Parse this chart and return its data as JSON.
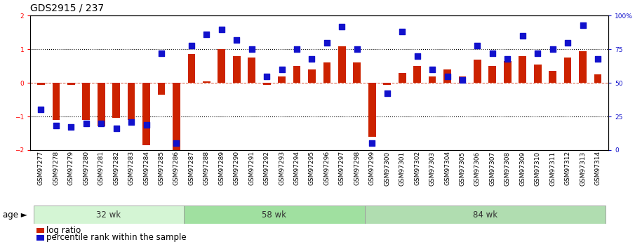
{
  "title": "GDS2915 / 237",
  "samples": [
    "GSM97277",
    "GSM97278",
    "GSM97279",
    "GSM97280",
    "GSM97281",
    "GSM97282",
    "GSM97283",
    "GSM97284",
    "GSM97285",
    "GSM97286",
    "GSM97287",
    "GSM97288",
    "GSM97289",
    "GSM97290",
    "GSM97291",
    "GSM97292",
    "GSM97293",
    "GSM97294",
    "GSM97295",
    "GSM97296",
    "GSM97297",
    "GSM97298",
    "GSM97299",
    "GSM97300",
    "GSM97301",
    "GSM97302",
    "GSM97303",
    "GSM97304",
    "GSM97305",
    "GSM97306",
    "GSM97307",
    "GSM97308",
    "GSM97309",
    "GSM97310",
    "GSM97311",
    "GSM97312",
    "GSM97313",
    "GSM97314"
  ],
  "log_ratio": [
    -0.05,
    -1.1,
    -0.05,
    -1.1,
    -1.3,
    -1.05,
    -1.1,
    -1.85,
    -0.35,
    -2.0,
    0.85,
    0.05,
    1.0,
    0.8,
    0.75,
    -0.05,
    0.2,
    0.5,
    0.4,
    0.6,
    1.1,
    0.6,
    -1.6,
    -0.05,
    0.3,
    0.5,
    0.2,
    0.4,
    0.2,
    0.7,
    0.5,
    0.65,
    0.8,
    0.55,
    0.35,
    0.75,
    0.95,
    0.25
  ],
  "percentile": [
    30,
    18,
    17,
    20,
    20,
    16,
    21,
    19,
    72,
    5,
    78,
    86,
    90,
    82,
    75,
    55,
    60,
    75,
    68,
    80,
    92,
    75,
    5,
    42,
    88,
    70,
    60,
    55,
    52,
    78,
    72,
    68,
    85,
    72,
    75,
    80,
    93,
    68
  ],
  "groups": [
    {
      "label": "32 wk",
      "start": 0,
      "end": 9
    },
    {
      "label": "58 wk",
      "start": 10,
      "end": 21
    },
    {
      "label": "84 wk",
      "start": 22,
      "end": 37
    }
  ],
  "group_colors": [
    "#d4f5d4",
    "#a0e0a0",
    "#b0ddb0"
  ],
  "bar_color": "#cc2200",
  "dot_color": "#1111cc",
  "ylim_left": [
    -2,
    2
  ],
  "ylim_right": [
    0,
    100
  ],
  "yticks_left": [
    -2,
    -1,
    0,
    1,
    2
  ],
  "yticks_right": [
    0,
    25,
    50,
    75,
    100
  ],
  "ylabel_right_labels": [
    "0",
    "25",
    "50",
    "75",
    "100%"
  ],
  "bar_width": 0.5,
  "dot_size": 28,
  "legend_items": [
    {
      "color": "#cc2200",
      "label": "log ratio"
    },
    {
      "color": "#1111cc",
      "label": "percentile rank within the sample"
    }
  ],
  "age_label": "age",
  "background_color": "#ffffff",
  "title_fontsize": 10,
  "tick_fontsize": 6.5,
  "label_fontsize": 8.5
}
